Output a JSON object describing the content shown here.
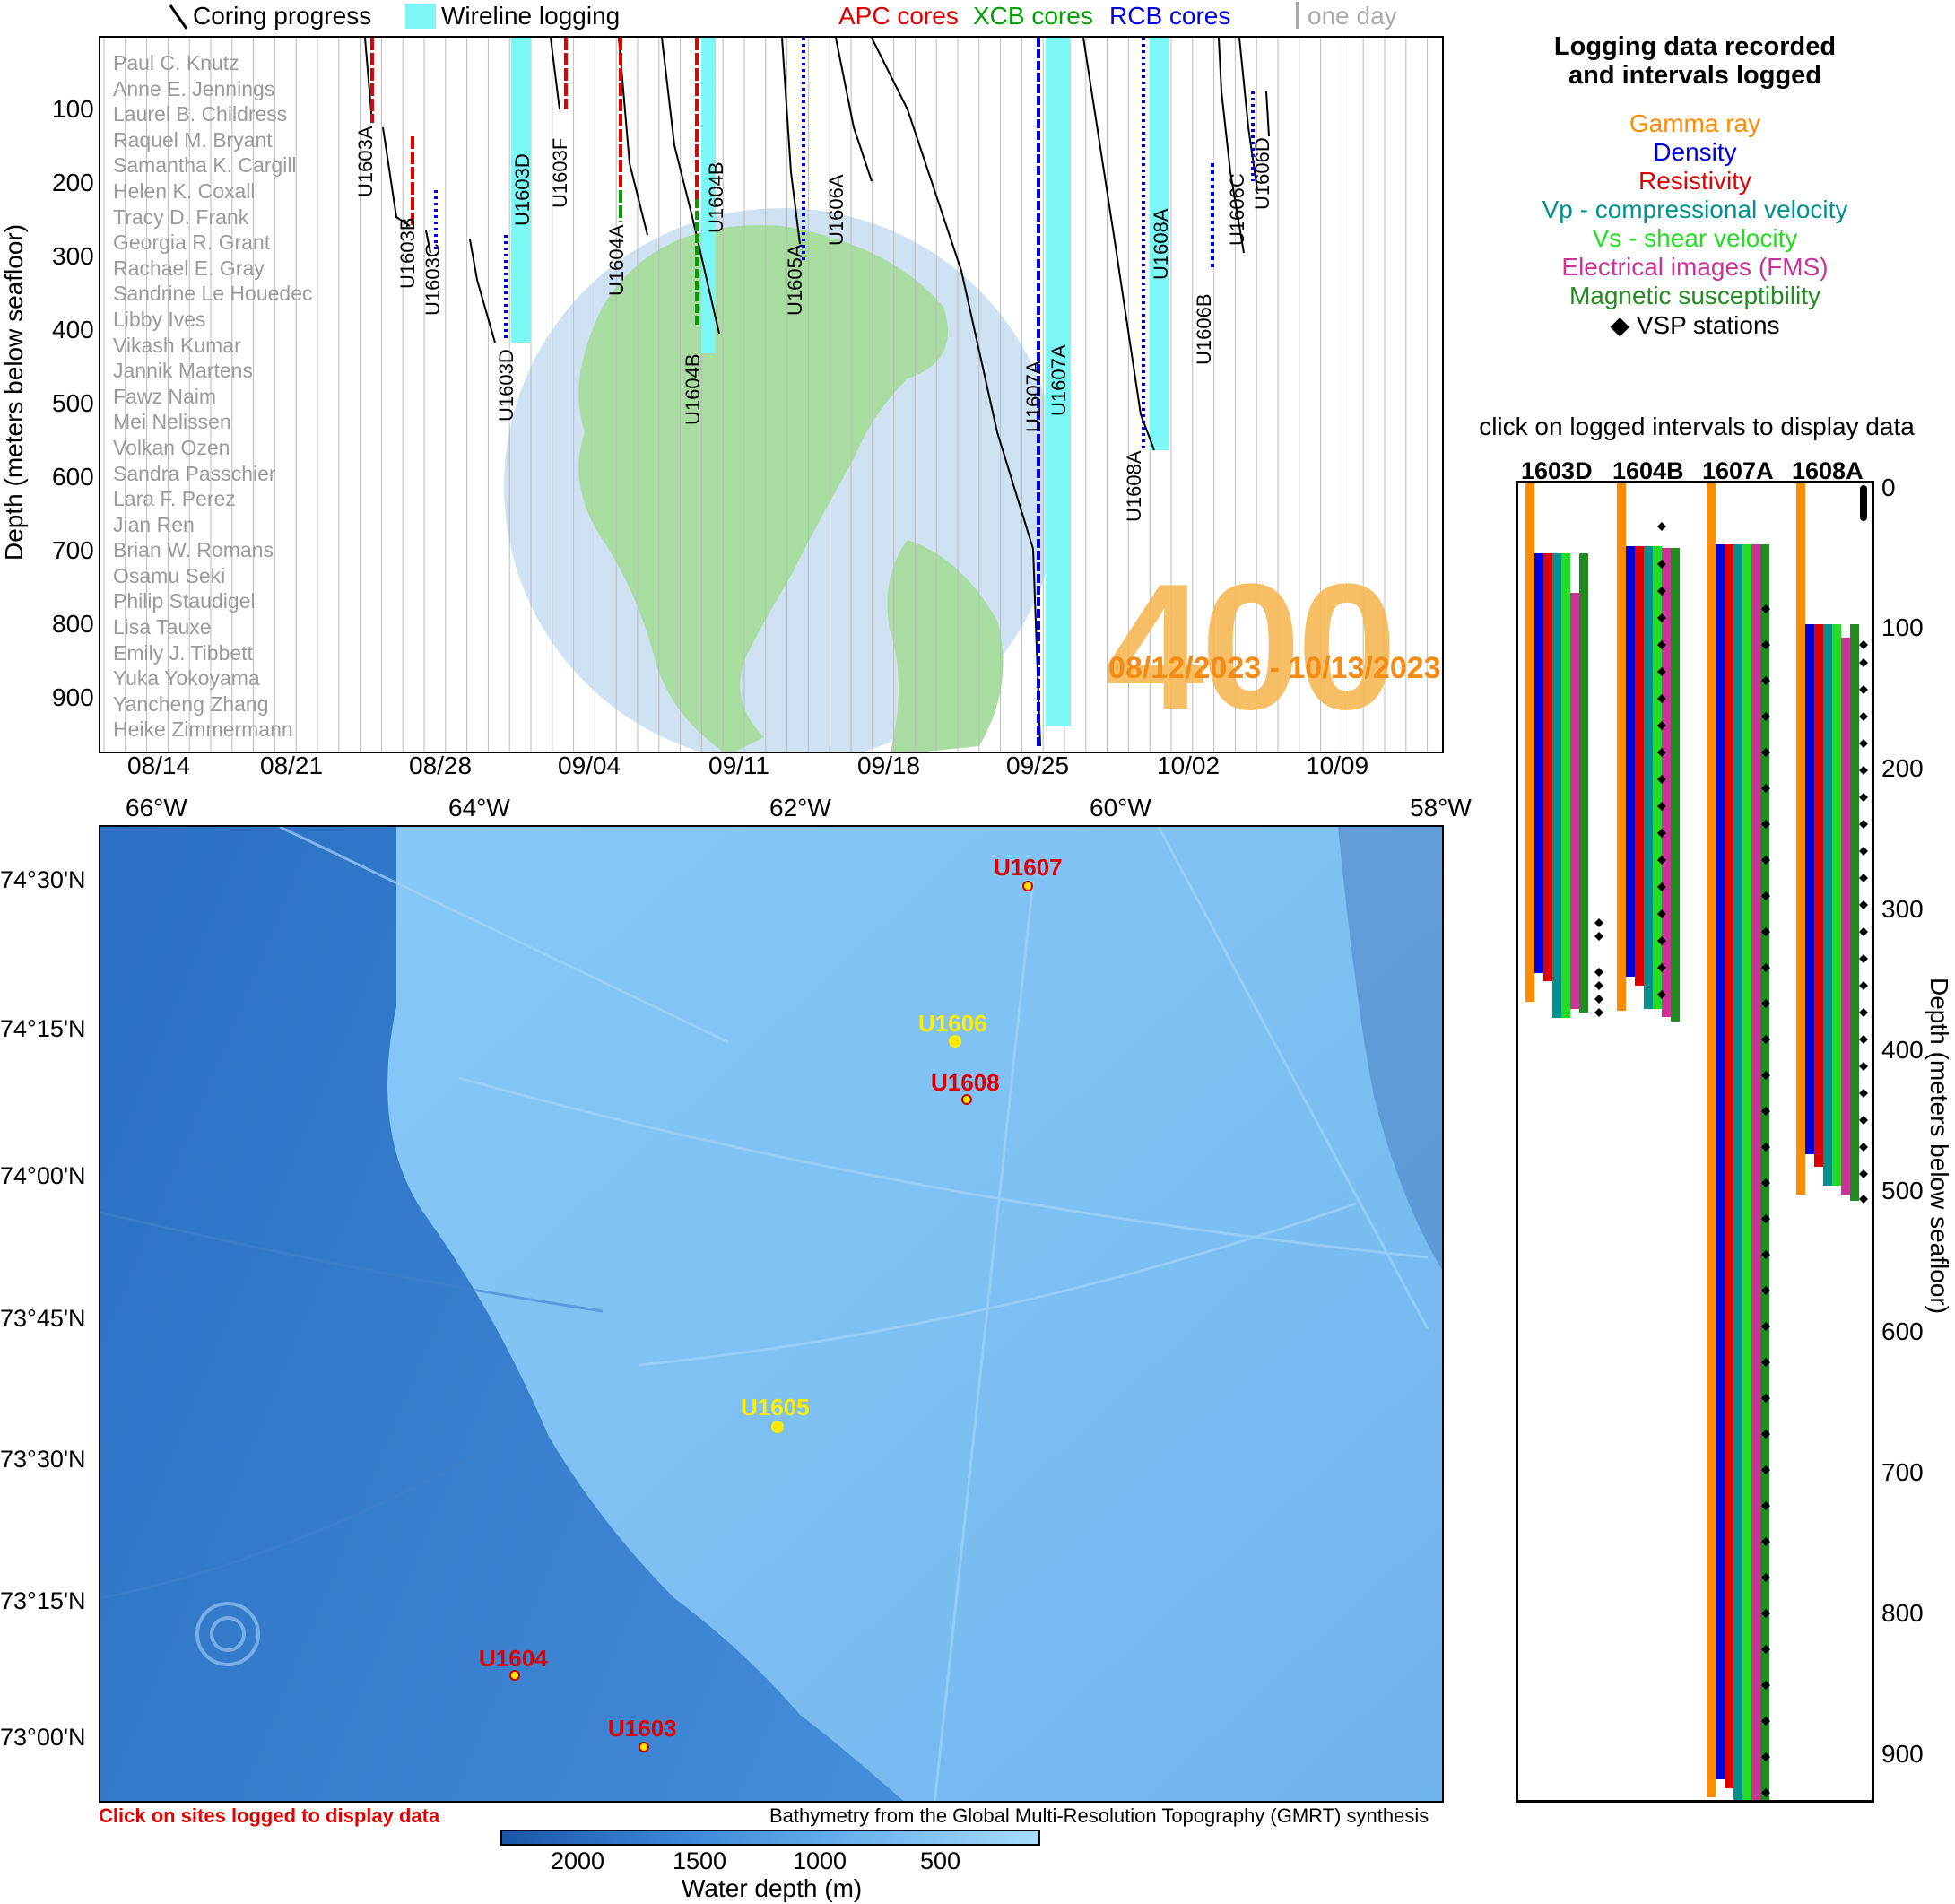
{
  "legend_top": {
    "coring_progress": "Coring progress",
    "wireline_logging": "Wireline logging",
    "apc": "APC cores",
    "xcb": "XCB cores",
    "rcb": "RCB cores",
    "one_day": "one day"
  },
  "timeline": {
    "ylabel": "Depth (meters below seafloor)",
    "yticks": [
      "100",
      "200",
      "300",
      "400",
      "500",
      "600",
      "700",
      "800",
      "900"
    ],
    "xticks": [
      "08/14",
      "08/21",
      "08/28",
      "09/04",
      "09/11",
      "09/18",
      "09/25",
      "10/02",
      "10/09"
    ],
    "expedition": "400",
    "date_range": "08/12/2023 - 10/13/2023",
    "scientists": [
      "Paul C. Knutz",
      "Anne E. Jennings",
      "Laurel B. Childress",
      "Raquel M. Bryant",
      "Samantha K. Cargill",
      "Helen K. Coxall",
      "Tracy D. Frank",
      "Georgia R. Grant",
      "Rachael E. Gray",
      "Sandrine Le Houedec",
      "Libby Ives",
      "Vikash Kumar",
      "Jannik Martens",
      "Fawz Naim",
      "Mei Nelissen",
      "Volkan Ozen",
      "Sandra Passchier",
      "Lara F. Perez",
      "Jian Ren",
      "Brian W. Romans",
      "Osamu Seki",
      "Philip Staudigel",
      "Lisa Tauxe",
      "Emily J. Tibbett",
      "Yuka Yokoyama",
      "Yancheng Zhang",
      "Heike Zimmermann"
    ],
    "holes": [
      "U1603A",
      "U1603B",
      "U1603C",
      "U1603D",
      "U1603D",
      "U1603F",
      "U1604A",
      "U1604B",
      "U1604B",
      "U1605A",
      "U1606A",
      "U1607A",
      "U1607A",
      "U1608A",
      "U1608A",
      "U1606B",
      "U1606C",
      "U1606D"
    ]
  },
  "logging_legend": {
    "title_line1": "Logging data recorded",
    "title_line2": "and intervals logged",
    "items": [
      {
        "label": "Gamma ray",
        "color": "#ff8c00"
      },
      {
        "label": "Density",
        "color": "#0000dd"
      },
      {
        "label": "Resistivity",
        "color": "#e00000"
      },
      {
        "label": "Vp - compressional velocity",
        "color": "#009090"
      },
      {
        "label": "Vs - shear velocity",
        "color": "#22dd22"
      },
      {
        "label": "Electrical images (FMS)",
        "color": "#cc3399"
      },
      {
        "label": "Magnetic susceptibility",
        "color": "#228b22"
      },
      {
        "label": "◆ VSP stations",
        "color": "#000000"
      }
    ],
    "click_hint": "click on logged intervals to display data"
  },
  "logged_intervals": {
    "columns": [
      "1603D",
      "1604B",
      "1607A",
      "1608A"
    ],
    "ylabel": "Depth (meters below seafloor)",
    "yticks": [
      "0",
      "100",
      "200",
      "300",
      "400",
      "500",
      "600",
      "700",
      "800",
      "900"
    ]
  },
  "map": {
    "lon_ticks": [
      "66°W",
      "64°W",
      "62°W",
      "60°W",
      "58°W"
    ],
    "lat_ticks": [
      "74°30'N",
      "74°15'N",
      "74°00'N",
      "73°45'N",
      "73°30'N",
      "73°15'N",
      "73°00'N"
    ],
    "sites": [
      {
        "name": "U1607",
        "color": "#e00000"
      },
      {
        "name": "U1606",
        "color": "#ffee00"
      },
      {
        "name": "U1608",
        "color": "#e00000"
      },
      {
        "name": "U1605",
        "color": "#ffee00"
      },
      {
        "name": "U1604",
        "color": "#e00000"
      },
      {
        "name": "U1603",
        "color": "#e00000"
      }
    ],
    "click_hint": "Click on sites logged to display data",
    "credit": "Bathymetry from the Global Multi-Resolution Topography (GMRT) synthesis",
    "colorbar_ticks": [
      "2000",
      "1500",
      "1000",
      "500"
    ],
    "colorbar_label": "Water depth (m)"
  }
}
